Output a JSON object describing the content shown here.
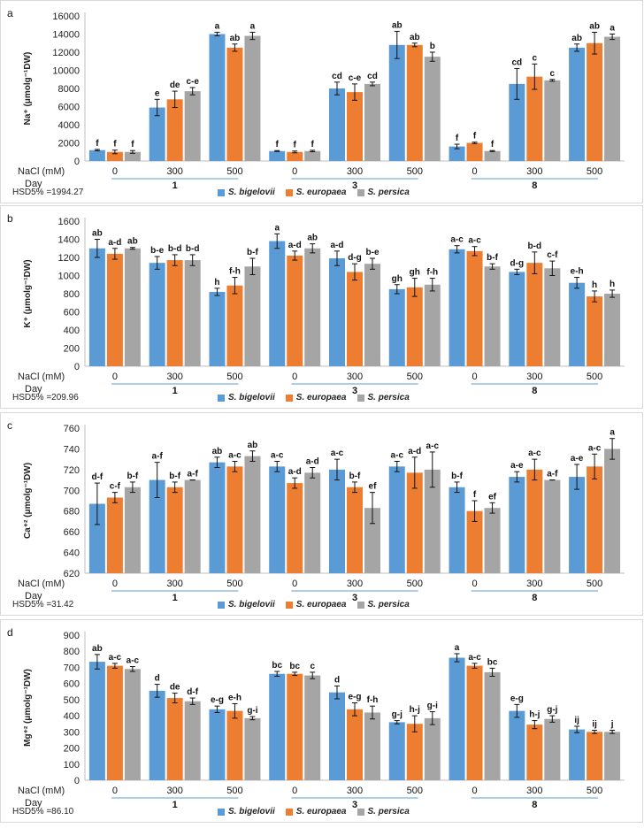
{
  "legend": [
    "S. bigelovii",
    "S. europaea",
    "S. persica"
  ],
  "colors": {
    "s1": "#5b9bd5",
    "s2": "#ed7d31",
    "s3": "#a5a5a5",
    "underline": "#5b9bd5"
  },
  "x_axis": {
    "nacl_label": "NaCl (mM)",
    "day_label": "Day",
    "nacl_levels": [
      "0",
      "300",
      "500"
    ],
    "days": [
      "1",
      "3",
      "8"
    ]
  },
  "chart_data": [
    {
      "type": "bar",
      "panel_label": "a",
      "ylabel": "Na⁺ (μmolg⁻¹DW)",
      "ylim": [
        0,
        16000
      ],
      "yticks": [
        0,
        2000,
        4000,
        6000,
        8000,
        10000,
        12000,
        14000,
        16000
      ],
      "hsd": "HSD5% =1994.27",
      "categories": [
        "Day 1 / 0",
        "Day 1 / 300",
        "Day 1 / 500",
        "Day 3 / 0",
        "Day 3 / 300",
        "Day 3 / 500",
        "Day 8 / 0",
        "Day 8 / 300",
        "Day 8 / 500"
      ],
      "series": [
        {
          "name": "S. bigelovii",
          "values": [
            1200,
            5900,
            14000,
            1100,
            8000,
            12800,
            1600,
            8500,
            12500
          ],
          "errors": [
            80,
            900,
            200,
            50,
            700,
            1500,
            250,
            1700,
            400
          ],
          "letters": [
            "f",
            "e",
            "a",
            "f",
            "cd",
            "ab",
            "f",
            "cd",
            "ab"
          ]
        },
        {
          "name": "S. europaea",
          "values": [
            1000,
            6800,
            12500,
            1000,
            7600,
            12800,
            2000,
            9300,
            13000
          ],
          "errors": [
            200,
            900,
            400,
            100,
            900,
            200,
            80,
            1400,
            1200
          ],
          "letters": [
            "f",
            "de",
            "ab",
            "f",
            "c-e",
            "ab",
            "f",
            "c",
            "ab"
          ]
        },
        {
          "name": "S. persica",
          "values": [
            1000,
            7700,
            13800,
            1100,
            8500,
            11500,
            1100,
            8900,
            13700
          ],
          "errors": [
            150,
            400,
            400,
            80,
            200,
            500,
            50,
            100,
            300
          ],
          "letters": [
            "f",
            "c-e",
            "a",
            "f",
            "cd",
            "b",
            "f",
            "c",
            "a"
          ]
        }
      ]
    },
    {
      "type": "bar",
      "panel_label": "b",
      "ylabel": "K⁺ (μmolg⁻¹DW)",
      "ylim": [
        0,
        1600
      ],
      "yticks": [
        0,
        200,
        400,
        600,
        800,
        1000,
        1200,
        1400,
        1600
      ],
      "hsd": "HSD5% =209.96",
      "categories": [
        "Day 1 / 0",
        "Day 1 / 300",
        "Day 1 / 500",
        "Day 3 / 0",
        "Day 3 / 300",
        "Day 3 / 500",
        "Day 8 / 0",
        "Day 8 / 300",
        "Day 8 / 500"
      ],
      "series": [
        {
          "name": "S. bigelovii",
          "values": [
            1300,
            1140,
            820,
            1380,
            1190,
            850,
            1290,
            1040,
            920
          ],
          "errors": [
            100,
            70,
            40,
            80,
            80,
            50,
            40,
            30,
            60
          ],
          "letters": [
            "ab",
            "b-e",
            "h",
            "a",
            "a-d",
            "gh",
            "a-c",
            "d-g",
            "e-h"
          ]
        },
        {
          "name": "S. europaea",
          "values": [
            1240,
            1170,
            890,
            1220,
            1040,
            870,
            1270,
            1140,
            770
          ],
          "errors": [
            60,
            60,
            90,
            50,
            90,
            100,
            50,
            120,
            60
          ],
          "letters": [
            "a-d",
            "b-d",
            "f-h",
            "a-d",
            "d-g",
            "gh",
            "a-c",
            "b-d",
            "h"
          ]
        },
        {
          "name": "S. persica",
          "values": [
            1300,
            1170,
            1100,
            1300,
            1130,
            900,
            1100,
            1080,
            800
          ],
          "errors": [
            10,
            60,
            90,
            50,
            60,
            70,
            30,
            80,
            40
          ],
          "letters": [
            "ab",
            "b-d",
            "b-f",
            "ab",
            "b-e",
            "f-h",
            "b-f",
            "c-f",
            "h"
          ]
        }
      ]
    },
    {
      "type": "bar",
      "panel_label": "c",
      "ylabel": "Ca⁺² (μmolg⁻¹DW)",
      "ylim": [
        620,
        760
      ],
      "yticks": [
        620,
        640,
        660,
        680,
        700,
        720,
        740,
        760
      ],
      "hsd": "HSD5% =31.42",
      "categories": [
        "Day 1 / 0",
        "Day 1 / 300",
        "Day 1 / 500",
        "Day 3 / 0",
        "Day 3 / 300",
        "Day 3 / 500",
        "Day 8 / 0",
        "Day 8 / 300",
        "Day 8 / 500"
      ],
      "series": [
        {
          "name": "S. bigelovii",
          "values": [
            687,
            710,
            727,
            723,
            720,
            723,
            703,
            713,
            713
          ],
          "errors": [
            20,
            17,
            5,
            5,
            10,
            5,
            5,
            5,
            12
          ],
          "letters": [
            "d-f",
            "a-f",
            "ab",
            "a-c",
            "a-c",
            "a-c",
            "b-f",
            "a-e",
            "a-e"
          ]
        },
        {
          "name": "S. europaea",
          "values": [
            693,
            703,
            723,
            707,
            703,
            717,
            680,
            720,
            723
          ],
          "errors": [
            5,
            5,
            5,
            5,
            5,
            15,
            10,
            10,
            12
          ],
          "letters": [
            "c-f",
            "b-f",
            "a-c",
            "a-d",
            "b-f",
            "a-d",
            "f",
            "a-c",
            "a-c"
          ]
        },
        {
          "name": "S. persica",
          "values": [
            703,
            710,
            733,
            717,
            683,
            720,
            683,
            710,
            740
          ],
          "errors": [
            5,
            0,
            5,
            5,
            15,
            17,
            5,
            0,
            10
          ],
          "letters": [
            "b-f",
            "a-f",
            "ab",
            "a-d",
            "ef",
            "a-c",
            "ef",
            "a-f",
            "a"
          ]
        }
      ]
    },
    {
      "type": "bar",
      "panel_label": "d",
      "ylabel": "Mg⁺² (μmolg⁻¹DW)",
      "ylim": [
        0,
        900
      ],
      "yticks": [
        0,
        100,
        200,
        300,
        400,
        500,
        600,
        700,
        800,
        900
      ],
      "hsd": "HSD5% =86.10",
      "categories": [
        "Day 1 / 0",
        "Day 1 / 300",
        "Day 1 / 500",
        "Day 3 / 0",
        "Day 3 / 300",
        "Day 3 / 500",
        "Day 8 / 0",
        "Day 8 / 300",
        "Day 8 / 500"
      ],
      "series": [
        {
          "name": "S. bigelovii",
          "values": [
            735,
            555,
            440,
            660,
            545,
            360,
            760,
            430,
            315
          ],
          "errors": [
            45,
            40,
            20,
            15,
            40,
            10,
            25,
            40,
            20
          ],
          "letters": [
            "ab",
            "d",
            "e-g",
            "bc",
            "d",
            "g-j",
            "a",
            "e-g",
            "ij"
          ]
        },
        {
          "name": "S. europaea",
          "values": [
            710,
            510,
            430,
            660,
            440,
            350,
            710,
            345,
            300
          ],
          "errors": [
            15,
            30,
            45,
            10,
            40,
            50,
            15,
            25,
            10
          ],
          "letters": [
            "a-c",
            "de",
            "e-h",
            "bc",
            "e-g",
            "h-j",
            "a-c",
            "h-j",
            "ij"
          ]
        },
        {
          "name": "S. persica",
          "values": [
            690,
            490,
            385,
            650,
            420,
            385,
            670,
            380,
            300
          ],
          "errors": [
            15,
            20,
            10,
            20,
            40,
            40,
            25,
            20,
            10
          ],
          "letters": [
            "a-c",
            "d-f",
            "g-i",
            "c",
            "f-h",
            "g-i",
            "bc",
            "g-j",
            "j"
          ]
        }
      ]
    }
  ]
}
